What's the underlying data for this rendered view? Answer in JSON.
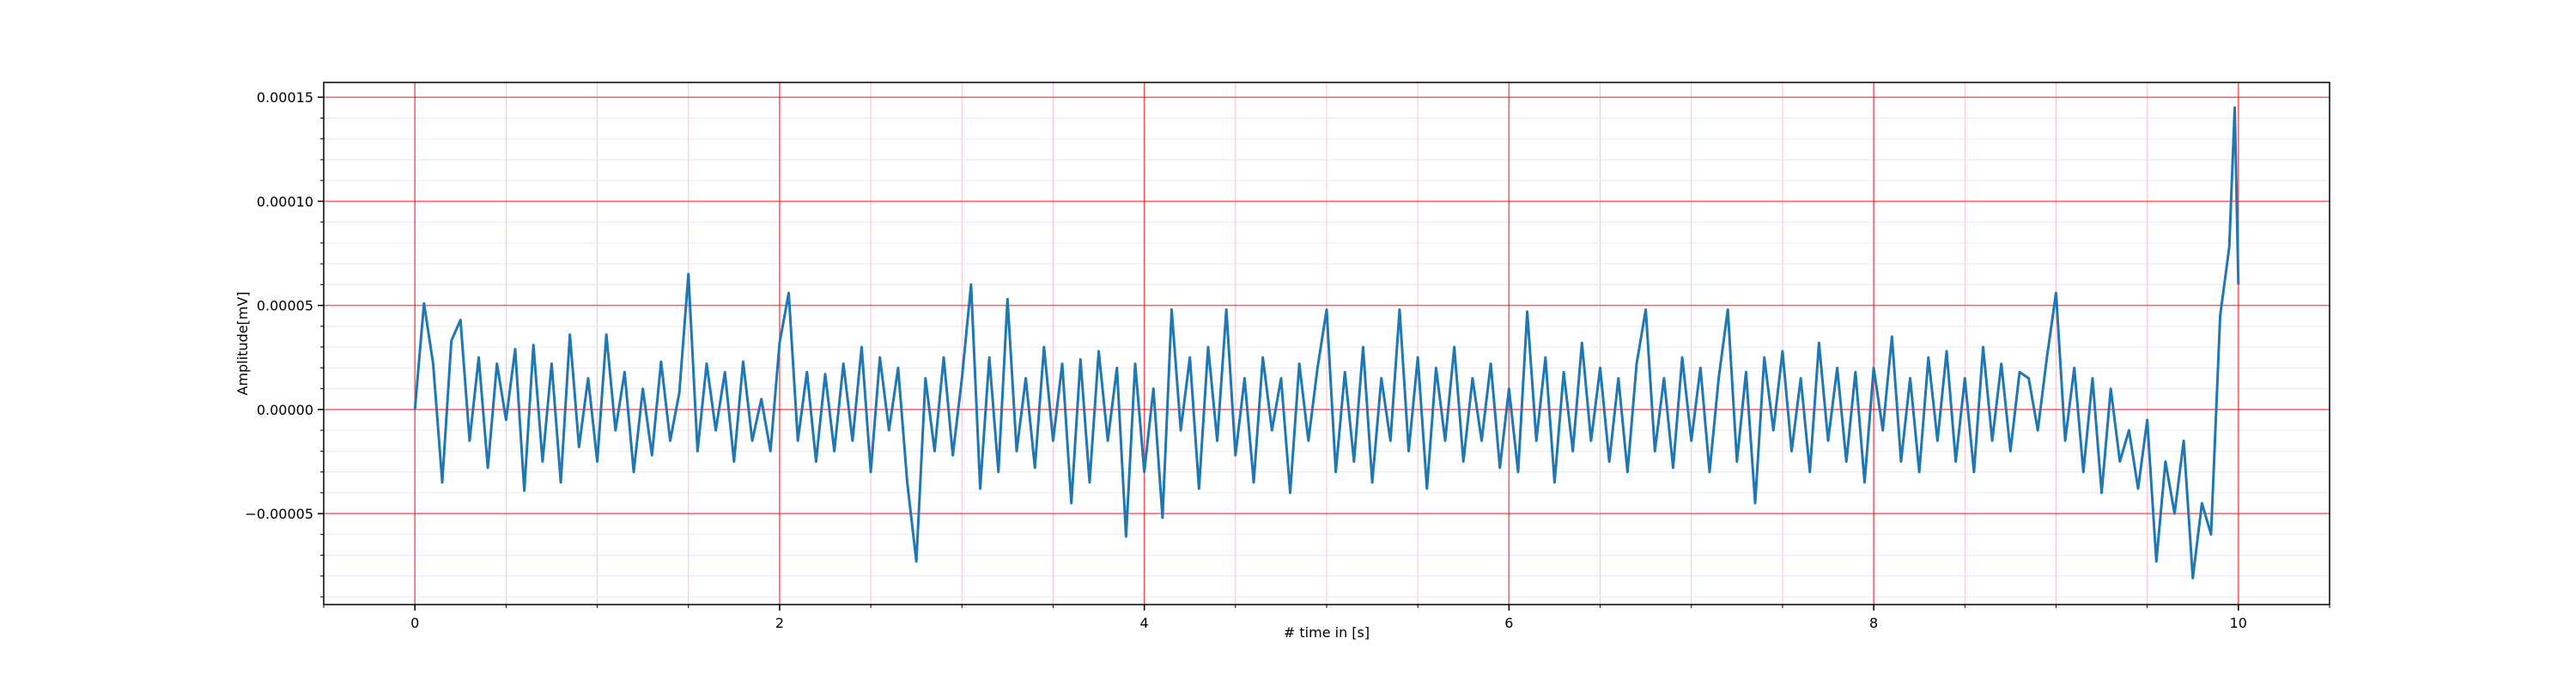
{
  "chart_data": {
    "type": "line",
    "xlabel": "# time in [s]",
    "ylabel": "Amplitude[mV]",
    "x": [
      0,
      0.05,
      0.1,
      0.15,
      0.2,
      0.25,
      0.3,
      0.35,
      0.4,
      0.45,
      0.5,
      0.55,
      0.6,
      0.65,
      0.7,
      0.75,
      0.8,
      0.85,
      0.9,
      0.95,
      1,
      1.05,
      1.1,
      1.15,
      1.2,
      1.25,
      1.3,
      1.35,
      1.4,
      1.45,
      1.5,
      1.55,
      1.6,
      1.65,
      1.7,
      1.75,
      1.8,
      1.85,
      1.9,
      1.95,
      2,
      2.05,
      2.1,
      2.15,
      2.2,
      2.25,
      2.3,
      2.35,
      2.4,
      2.45,
      2.5,
      2.55,
      2.6,
      2.65,
      2.7,
      2.75,
      2.8,
      2.85,
      2.9,
      2.95,
      3,
      3.05,
      3.1,
      3.15,
      3.2,
      3.25,
      3.3,
      3.35,
      3.4,
      3.45,
      3.5,
      3.55,
      3.6,
      3.65,
      3.7,
      3.75,
      3.8,
      3.85,
      3.9,
      3.95,
      4,
      4.05,
      4.1,
      4.15,
      4.2,
      4.25,
      4.3,
      4.35,
      4.4,
      4.45,
      4.5,
      4.55,
      4.6,
      4.65,
      4.7,
      4.75,
      4.8,
      4.85,
      4.9,
      4.95,
      5,
      5.05,
      5.1,
      5.15,
      5.2,
      5.25,
      5.3,
      5.35,
      5.4,
      5.45,
      5.5,
      5.55,
      5.6,
      5.65,
      5.7,
      5.75,
      5.8,
      5.85,
      5.9,
      5.95,
      6,
      6.05,
      6.1,
      6.15,
      6.2,
      6.25,
      6.3,
      6.35,
      6.4,
      6.45,
      6.5,
      6.55,
      6.6,
      6.65,
      6.7,
      6.75,
      6.8,
      6.85,
      6.9,
      6.95,
      7,
      7.05,
      7.1,
      7.15,
      7.2,
      7.25,
      7.3,
      7.35,
      7.4,
      7.45,
      7.5,
      7.55,
      7.6,
      7.65,
      7.7,
      7.75,
      7.8,
      7.85,
      7.9,
      7.95,
      8,
      8.05,
      8.1,
      8.15,
      8.2,
      8.25,
      8.3,
      8.35,
      8.4,
      8.45,
      8.5,
      8.55,
      8.6,
      8.65,
      8.7,
      8.75,
      8.8,
      8.85,
      8.9,
      8.95,
      9,
      9.05,
      9.1,
      9.15,
      9.2,
      9.25,
      9.3,
      9.35,
      9.4,
      9.45,
      9.5,
      9.55,
      9.6,
      9.65,
      9.7,
      9.75,
      9.8,
      9.85,
      9.9,
      9.95,
      9.98,
      10
    ],
    "values": [
      0,
      5.1e-05,
      2.2e-05,
      -3.5e-05,
      3.3e-05,
      4.3e-05,
      -1.5e-05,
      2.5e-05,
      -2.8e-05,
      2.2e-05,
      -5e-06,
      2.9e-05,
      -3.9e-05,
      3.1e-05,
      -2.5e-05,
      2.2e-05,
      -3.5e-05,
      3.6e-05,
      -1.8e-05,
      1.5e-05,
      -2.5e-05,
      3.6e-05,
      -1e-05,
      1.8e-05,
      -3e-05,
      1e-05,
      -2.2e-05,
      2.3e-05,
      -1.5e-05,
      8e-06,
      6.5e-05,
      -2e-05,
      2.2e-05,
      -1e-05,
      1.8e-05,
      -2.5e-05,
      2.3e-05,
      -1.5e-05,
      5e-06,
      -2e-05,
      3.2e-05,
      5.6e-05,
      -1.5e-05,
      1.8e-05,
      -2.5e-05,
      1.7e-05,
      -2e-05,
      2.2e-05,
      -1.5e-05,
      3e-05,
      -3e-05,
      2.5e-05,
      -1e-05,
      2e-05,
      -3.5e-05,
      -7.3e-05,
      1.5e-05,
      -2e-05,
      2.5e-05,
      -2.2e-05,
      1.5e-05,
      6e-05,
      -3.8e-05,
      2.5e-05,
      -3e-05,
      5.3e-05,
      -2e-05,
      1.5e-05,
      -2.8e-05,
      3e-05,
      -1.5e-05,
      2.2e-05,
      -4.5e-05,
      2.4e-05,
      -3.5e-05,
      2.8e-05,
      -1.5e-05,
      2e-05,
      -6.1e-05,
      2.2e-05,
      -3e-05,
      1e-05,
      -5.2e-05,
      4.8e-05,
      -1e-05,
      2.5e-05,
      -3.8e-05,
      3e-05,
      -1.5e-05,
      4.8e-05,
      -2.2e-05,
      1.5e-05,
      -3.5e-05,
      2.5e-05,
      -1e-05,
      1.5e-05,
      -4e-05,
      2.2e-05,
      -1.5e-05,
      2e-05,
      4.8e-05,
      -3e-05,
      1.8e-05,
      -2.5e-05,
      3e-05,
      -3.5e-05,
      1.5e-05,
      -1.5e-05,
      4.8e-05,
      -2e-05,
      2.5e-05,
      -3.8e-05,
      2e-05,
      -1.5e-05,
      3e-05,
      -2.5e-05,
      1.5e-05,
      -1.5e-05,
      2.2e-05,
      -2.8e-05,
      1e-05,
      -3e-05,
      4.7e-05,
      -1.5e-05,
      2.5e-05,
      -3.5e-05,
      1.8e-05,
      -2e-05,
      3.2e-05,
      -1.5e-05,
      2e-05,
      -2.5e-05,
      1.5e-05,
      -3e-05,
      2.2e-05,
      4.8e-05,
      -2e-05,
      1.5e-05,
      -2.8e-05,
      2.5e-05,
      -1.5e-05,
      2e-05,
      -3e-05,
      1.5e-05,
      4.8e-05,
      -2.5e-05,
      1.8e-05,
      -4.5e-05,
      2.5e-05,
      -1e-05,
      2.8e-05,
      -2e-05,
      1.5e-05,
      -3e-05,
      3.2e-05,
      -1.5e-05,
      2e-05,
      -2.5e-05,
      1.8e-05,
      -3.5e-05,
      2e-05,
      -1e-05,
      3.5e-05,
      -2.5e-05,
      1.5e-05,
      -3e-05,
      2.5e-05,
      -1.5e-05,
      2.8e-05,
      -2.5e-05,
      1.5e-05,
      -3e-05,
      3e-05,
      -1.5e-05,
      2.2e-05,
      -2e-05,
      1.8e-05,
      1.5e-05,
      -1e-05,
      2.5e-05,
      5.6e-05,
      -1.5e-05,
      2e-05,
      -3e-05,
      1.5e-05,
      -4e-05,
      1e-05,
      -2.5e-05,
      -1e-05,
      -3.8e-05,
      -5e-06,
      -7.3e-05,
      -2.5e-05,
      -5e-05,
      -1.5e-05,
      -8.1e-05,
      -4.5e-05,
      -6e-05,
      4.5e-05,
      7.8e-05,
      0.000145,
      6e-05
    ],
    "color": "#1f77b4",
    "xlim": [
      -0.5,
      10.5
    ],
    "xticks": [
      0,
      2,
      4,
      6,
      8,
      10
    ],
    "ylim": [
      -9.37e-05,
      0.0001571
    ],
    "yticks": [
      {
        "value": -5e-05,
        "label": "−0.00005"
      },
      {
        "value": 0,
        "label": "0.00000"
      },
      {
        "value": 5e-05,
        "label": "0.00005"
      },
      {
        "value": 0.0001,
        "label": "0.00010"
      },
      {
        "value": 0.00015,
        "label": "0.00015"
      }
    ],
    "grid": true,
    "minor_grid": true
  }
}
